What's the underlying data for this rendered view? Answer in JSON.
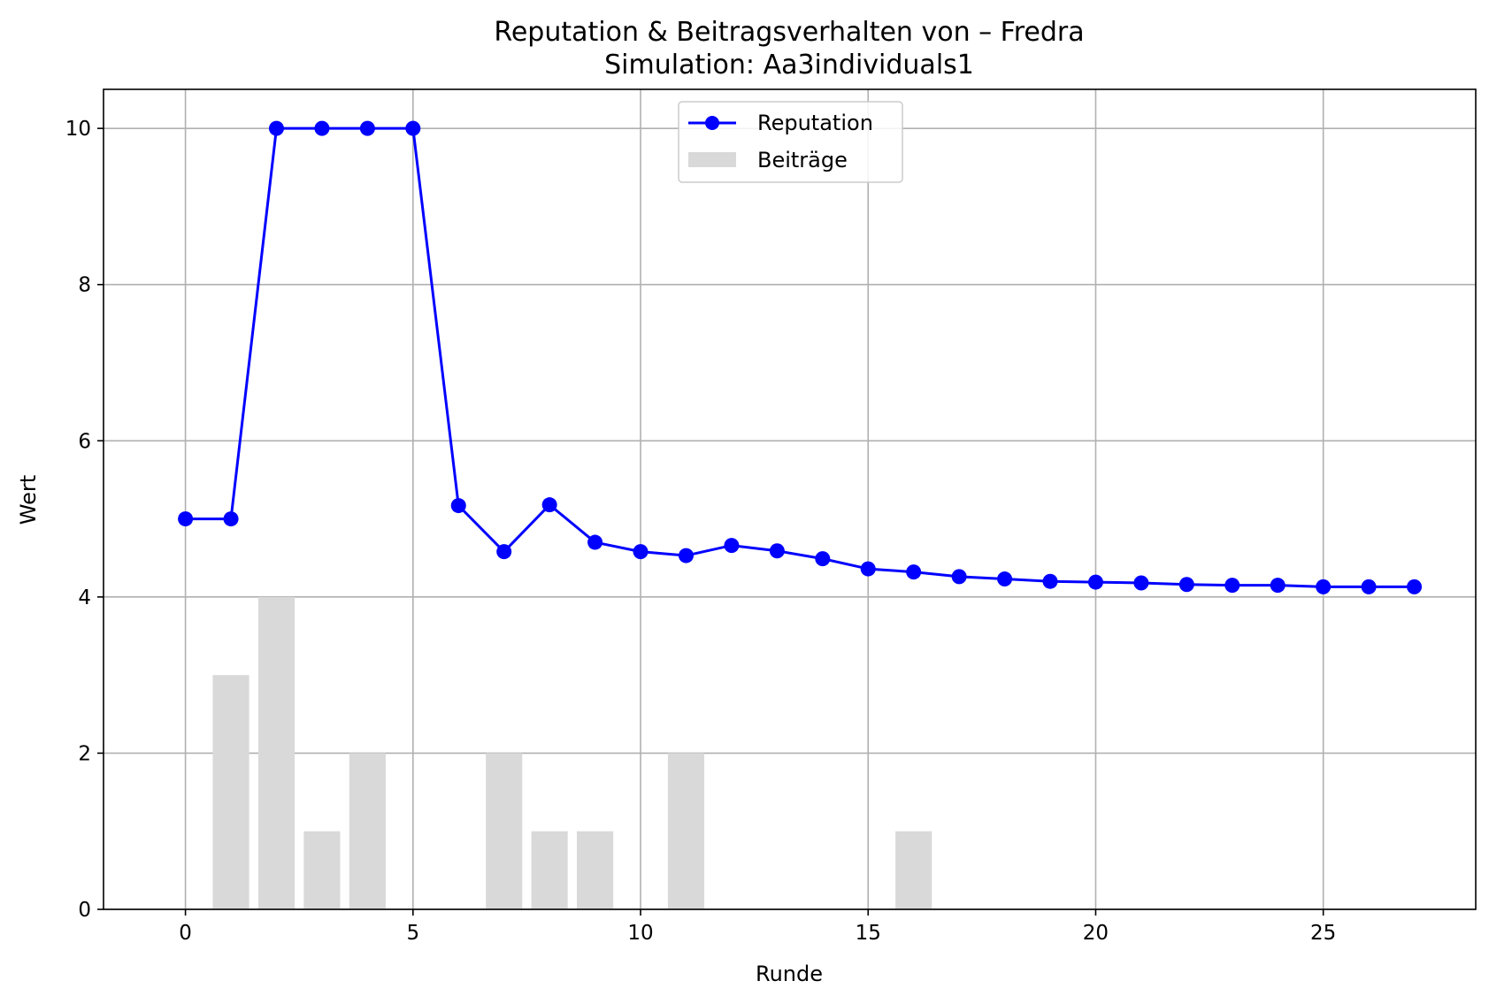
{
  "chart_data": {
    "type": "line",
    "title": "Reputation & Beitragsverhalten von – Fredra",
    "subtitle": "Simulation: Aa3individuals1",
    "xlabel": "Runde",
    "ylabel": "Wert",
    "xlim": [
      -1.8,
      28.35
    ],
    "ylim": [
      0,
      10.5
    ],
    "xticks": [
      0,
      5,
      10,
      15,
      20,
      25
    ],
    "yticks": [
      0,
      2,
      4,
      6,
      8,
      10
    ],
    "grid": true,
    "legend_position": "upper center",
    "x": [
      0,
      1,
      2,
      3,
      4,
      5,
      6,
      7,
      8,
      9,
      10,
      11,
      12,
      13,
      14,
      15,
      16,
      17,
      18,
      19,
      20,
      21,
      22,
      23,
      24,
      25,
      26,
      27
    ],
    "series": [
      {
        "name": "Reputation",
        "type": "line",
        "marker": "circle",
        "color": "#0000ff",
        "values": [
          5.0,
          5.0,
          10.0,
          10.0,
          10.0,
          10.0,
          5.17,
          4.58,
          5.18,
          4.7,
          4.58,
          4.53,
          4.66,
          4.59,
          4.49,
          4.36,
          4.32,
          4.26,
          4.23,
          4.2,
          4.19,
          4.18,
          4.16,
          4.15,
          4.15,
          4.13,
          4.13,
          4.13
        ]
      },
      {
        "name": "Beiträge",
        "type": "bar",
        "color": "#d9d9d9",
        "values": [
          0,
          3,
          4,
          1,
          2,
          0,
          0,
          2,
          1,
          1,
          0,
          2,
          0,
          0,
          0,
          0,
          1,
          0,
          0,
          0,
          0,
          0,
          0,
          0,
          0,
          0,
          0,
          0
        ]
      }
    ]
  }
}
